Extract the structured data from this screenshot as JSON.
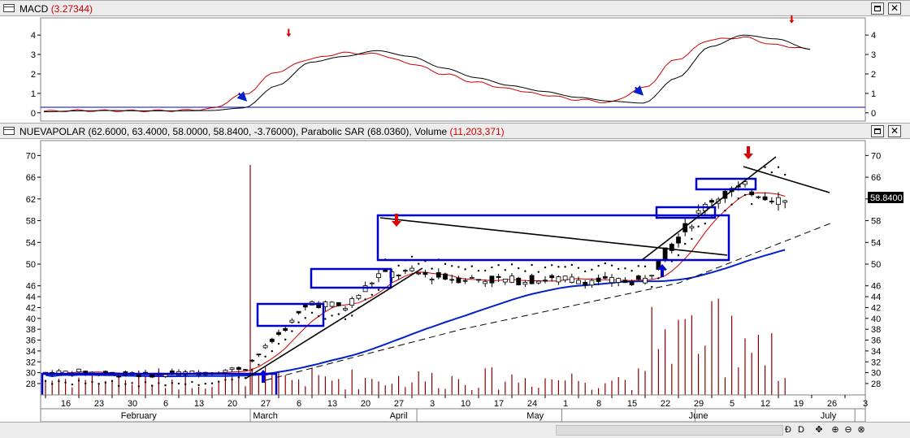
{
  "macd_panel": {
    "label": "MACD",
    "value": "(3.27344)",
    "y_ticks": [
      "4",
      "3",
      "2",
      "1",
      "0"
    ]
  },
  "price_panel": {
    "label": "NUEVAPOLAR (62.6000, 63.4000, 58.0000, 58.8400, -3.76000), Parabolic SAR (68.0360), Volume",
    "volume_value": "(11,203,371)",
    "y_ticks": [
      "70",
      "66",
      "62",
      "58",
      "54",
      "50",
      "46",
      "44",
      "42",
      "40",
      "38",
      "36",
      "34",
      "32",
      "30",
      "28"
    ],
    "last_price": "58.8400"
  },
  "x_axis": {
    "day_ticks": [
      "16",
      "23",
      "30",
      "6",
      "13",
      "20",
      "27",
      "6",
      "13",
      "20",
      "27",
      "3",
      "10",
      "17",
      "24",
      "1",
      "8",
      "15",
      "22",
      "29",
      "5",
      "12",
      "19",
      "26",
      "3"
    ],
    "month_labels": [
      "February",
      "March",
      "April",
      "May",
      "June",
      "July"
    ]
  },
  "window": {
    "restore_symbol": "",
    "close_symbol": "✕"
  },
  "statusbar": {
    "icons": [
      "Ð",
      "D",
      "✥",
      "⊕",
      "⊖",
      "⊗"
    ]
  },
  "colors": {
    "candle_up": "#ffffff",
    "candle_down": "#000000",
    "macd_signal": "#cc0000",
    "macd_line": "#000000",
    "moving_average_fast": "#cc0000",
    "moving_average_slow": "#0000cc",
    "volume": "#8b0000",
    "sar_dots": "#000000",
    "box_annotation": "#0000cc",
    "arrow_sell": "#dd0000",
    "arrow_buy": "#0000dd"
  },
  "chart_data": {
    "type": "candlestick",
    "ticker": "NUEVAPOLAR",
    "ohlc_last": {
      "open": 62.6,
      "high": 63.4,
      "low": 58.0,
      "close": 58.84,
      "change": -3.76
    },
    "parabolic_sar_last": 68.036,
    "volume_last": 11203371,
    "macd_last": 3.27344,
    "ylim_price": [
      26.5,
      72
    ],
    "ylim_macd": [
      -0.3,
      4.8
    ],
    "dates": [
      "16",
      "23",
      "30",
      "6",
      "13",
      "20",
      "27",
      "6",
      "13",
      "20",
      "27",
      "3",
      "10",
      "17",
      "24",
      "1",
      "8",
      "15",
      "22",
      "29",
      "5",
      "12",
      "19",
      "26",
      "3"
    ],
    "closes_weekly_approx": [
      30,
      30.2,
      29.8,
      29.6,
      29.9,
      30.1,
      31,
      37,
      43,
      42,
      48,
      48.4,
      47.5,
      47.2,
      47,
      47.2,
      47.1,
      46.8,
      47,
      55,
      62,
      64,
      62,
      58.84,
      null
    ],
    "macd_series_weekly_approx": [
      0.05,
      0.1,
      0.12,
      0.1,
      0.1,
      0.12,
      0.25,
      1.4,
      2.6,
      2.9,
      3.2,
      2.9,
      2.3,
      1.8,
      1.4,
      1.1,
      0.8,
      0.6,
      0.5,
      1.8,
      3.4,
      4.0,
      3.8,
      3.27,
      null
    ],
    "annotations": [
      {
        "type": "sell_arrow",
        "pane": "price",
        "date": "27"
      },
      {
        "type": "sell_arrow",
        "pane": "price",
        "date": "12"
      },
      {
        "type": "buy_arrow",
        "pane": "price",
        "date": "27"
      },
      {
        "type": "buy_arrow",
        "pane": "price",
        "date": "22"
      }
    ]
  }
}
